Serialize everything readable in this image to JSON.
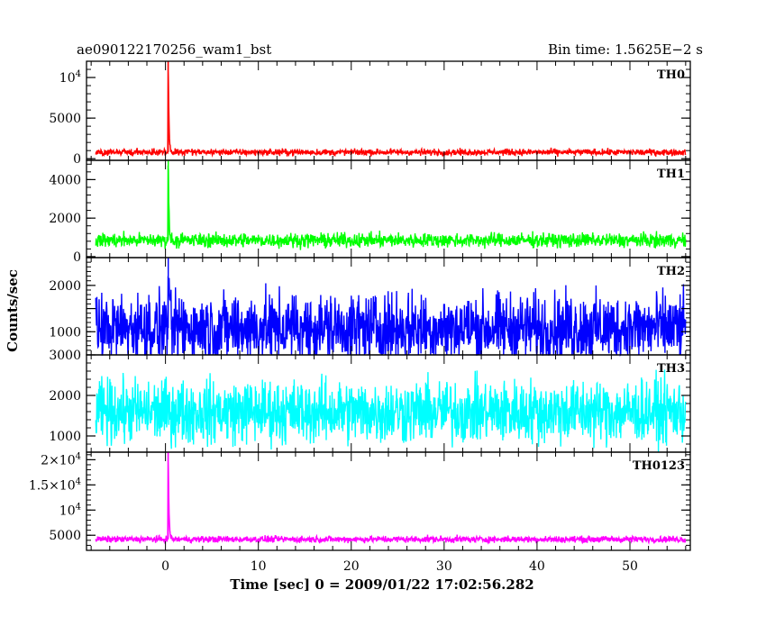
{
  "header": {
    "left": "ae090122170256_wam1_bst",
    "right": "Bin time: 1.5625E−2 s"
  },
  "chart_data": {
    "type": "line",
    "xlabel": "Time [sec] 0 = 2009/01/22 17:02:56.282",
    "ylabel": "Counts/sec",
    "xlim": [
      -8.5,
      56.5
    ],
    "x_ticks": [
      0,
      10,
      20,
      30,
      40,
      50
    ],
    "x_tick_labels": [
      "0",
      "10",
      "20",
      "30",
      "40",
      "50"
    ],
    "data_range": [
      -7.5,
      56
    ],
    "panels": [
      {
        "name": "TH0",
        "color": "#ff0000",
        "ylim": [
          -200,
          12000
        ],
        "ticks": [
          0,
          5000,
          10000
        ],
        "tick_labels": [
          {
            "base": "0"
          },
          {
            "base": "5000"
          },
          {
            "base": "10",
            "exp": "4"
          }
        ],
        "baseline": 800,
        "noise": 280,
        "spike_x": 0.3,
        "spike_peak": 12000
      },
      {
        "name": "TH1",
        "color": "#00ff00",
        "ylim": [
          -50,
          5000
        ],
        "ticks": [
          0,
          2000,
          4000
        ],
        "tick_labels": [
          {
            "base": "0"
          },
          {
            "base": "2000"
          },
          {
            "base": "4000"
          }
        ],
        "baseline": 850,
        "noise": 260,
        "spike_x": 0.3,
        "spike_peak": 5000
      },
      {
        "name": "TH2",
        "color": "#0000ff",
        "ylim": [
          500,
          2600
        ],
        "ticks": [
          1000,
          1500,
          2000
        ],
        "tick_labels": [
          {
            "base": "1000"
          },
          null,
          {
            "base": "2000"
          }
        ],
        "baseline": 1080,
        "noise": 520,
        "spike_x": 0.3,
        "spike_peak": 2600
      },
      {
        "name": "TH3",
        "color": "#00ffff",
        "ylim": [
          600,
          3000
        ],
        "ticks": [
          1000,
          2000,
          3000
        ],
        "tick_labels": [
          {
            "base": "1000"
          },
          {
            "base": "2000"
          },
          {
            "base": "3000"
          }
        ],
        "baseline": 1600,
        "noise": 550,
        "spike_x": null,
        "spike_peak": null
      },
      {
        "name": "TH0123",
        "color": "#ff00ff",
        "ylim": [
          2000,
          21500
        ],
        "ticks": [
          5000,
          10000,
          15000,
          20000
        ],
        "tick_labels": [
          {
            "base": "5000"
          },
          {
            "base": "10",
            "exp": "4"
          },
          {
            "base": "1.5×10",
            "exp": "4"
          },
          {
            "base": "2×10",
            "exp": "4"
          }
        ],
        "baseline": 4200,
        "noise": 450,
        "spike_x": 0.3,
        "spike_peak": 21500
      }
    ]
  }
}
